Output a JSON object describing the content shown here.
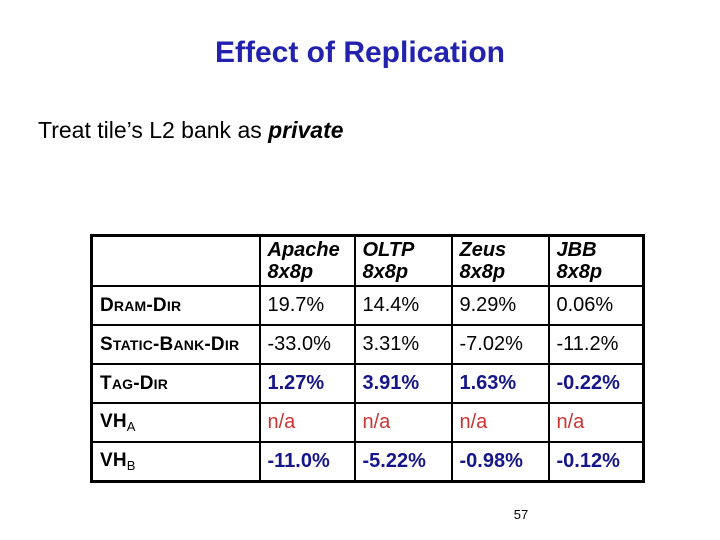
{
  "slide": {
    "title": "Effect of Replication",
    "subtitle_prefix": "Treat tile’s L2 bank as ",
    "subtitle_emphasis": "private",
    "page_number": "57"
  },
  "colors": {
    "title_blue": "#2222AE",
    "value_navy": "#16168B",
    "na_red": "#CC3333",
    "border_black": "#000000",
    "background": "#FFFFFF"
  },
  "table": {
    "corner_label": "",
    "columns": [
      {
        "name": "Apache",
        "config": "8x8p"
      },
      {
        "name": "OLTP",
        "config": "8x8p"
      },
      {
        "name": "Zeus",
        "config": "8x8p"
      },
      {
        "name": "JBB",
        "config": "8x8p"
      }
    ],
    "rows": [
      {
        "label_plain": "DRAM-DIR",
        "label_parts": [
          {
            "t": "D",
            "s": "n"
          },
          {
            "t": "RAM",
            "s": "sc"
          },
          {
            "t": "-D",
            "s": "n"
          },
          {
            "t": "IR",
            "s": "sc"
          }
        ],
        "style": "black",
        "values": [
          "19.7%",
          "14.4%",
          "9.29%",
          "0.06%"
        ]
      },
      {
        "label_plain": "STATIC-BANK-DIR",
        "label_parts": [
          {
            "t": "S",
            "s": "n"
          },
          {
            "t": "TATIC",
            "s": "sc"
          },
          {
            "t": "-B",
            "s": "n"
          },
          {
            "t": "ANK",
            "s": "sc"
          },
          {
            "t": "-D",
            "s": "n"
          },
          {
            "t": "IR",
            "s": "sc"
          }
        ],
        "style": "black",
        "values": [
          "-33.0%",
          "3.31%",
          "-7.02%",
          "-11.2%"
        ]
      },
      {
        "label_plain": "TAG-DIR",
        "label_parts": [
          {
            "t": "T",
            "s": "n"
          },
          {
            "t": "AG",
            "s": "sc"
          },
          {
            "t": "-D",
            "s": "n"
          },
          {
            "t": "IR",
            "s": "sc"
          }
        ],
        "style": "blue",
        "values": [
          "1.27%",
          "3.91%",
          "1.63%",
          "-0.22%"
        ]
      },
      {
        "label_plain": "VHA",
        "label_parts": [
          {
            "t": "VH",
            "s": "n"
          },
          {
            "t": "A",
            "s": "sub"
          }
        ],
        "style": "red",
        "values": [
          "n/a",
          "n/a",
          "n/a",
          "n/a"
        ]
      },
      {
        "label_plain": "VHB",
        "label_parts": [
          {
            "t": "VH",
            "s": "n"
          },
          {
            "t": "B",
            "s": "sub"
          }
        ],
        "style": "blue",
        "values": [
          "-11.0%",
          "-5.22%",
          "-0.98%",
          "-0.12%"
        ]
      }
    ]
  }
}
